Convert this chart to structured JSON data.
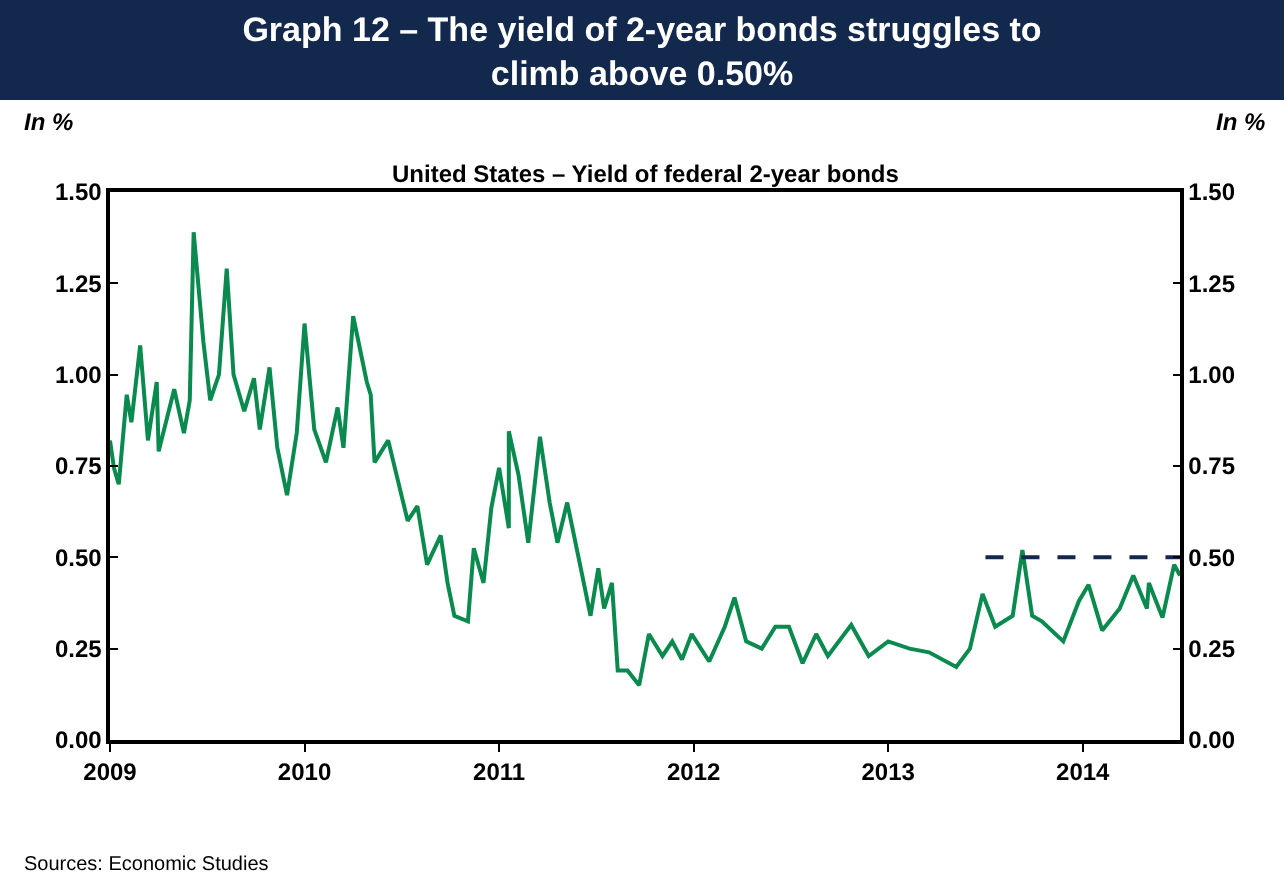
{
  "chart_data": {
    "type": "line",
    "title": "Graph 12 – The yield of 2-year bonds struggles to climb above 0.50%",
    "subtitle": "United States – Yield of federal 2-year bonds",
    "ylabel": "In %",
    "y2label": "In %",
    "annotations": [
      "Sources: Economic Studies"
    ],
    "xlim": [
      2009,
      2014.5
    ],
    "xticks": [
      2009,
      2010,
      2011,
      2012,
      2013,
      2014
    ],
    "ylim": [
      0,
      1.5
    ],
    "yticks": [
      {
        "value": 0,
        "label": "0.00"
      },
      {
        "value": 0.25,
        "label": "0.25"
      },
      {
        "value": 0.5,
        "label": "0.50"
      },
      {
        "value": 0.75,
        "label": "0.75"
      },
      {
        "value": 1,
        "label": "1.00"
      },
      {
        "value": 1.25,
        "label": "1.25"
      },
      {
        "value": 1.5,
        "label": "1.50"
      }
    ],
    "y2lim": [
      0,
      1.5
    ],
    "y2ticks": [
      {
        "value": 0,
        "label": "0.00"
      },
      {
        "value": 0.25,
        "label": "0.25"
      },
      {
        "value": 0.5,
        "label": "0.50"
      },
      {
        "value": 0.75,
        "label": "0.75"
      },
      {
        "value": 1,
        "label": "1.00"
      },
      {
        "value": 1.25,
        "label": "1.25"
      },
      {
        "value": 1.5,
        "label": "1.50"
      }
    ],
    "grid": false,
    "marker": "none",
    "series": [
      {
        "color": "#0a8a4e",
        "line_style": "solid",
        "x": [
          2009.0,
          2009.02,
          2009.045,
          2009.086,
          2009.11,
          2009.155,
          2009.195,
          2009.24,
          2009.25,
          2009.33,
          2009.38,
          2009.41,
          2009.43,
          2009.48,
          2009.515,
          2009.56,
          2009.6,
          2009.635,
          2009.69,
          2009.74,
          2009.77,
          2009.82,
          2009.86,
          2009.91,
          2009.96,
          2010.0,
          2010.05,
          2010.11,
          2010.17,
          2010.2,
          2010.25,
          2010.32,
          2010.34,
          2010.36,
          2010.43,
          2010.48,
          2010.53,
          2010.58,
          2010.63,
          2010.7,
          2010.735,
          2010.77,
          2010.84,
          2010.87,
          2010.92,
          2010.96,
          2011.0,
          2011.05,
          2011.05,
          2011.1,
          2011.15,
          2011.21,
          2011.26,
          2011.3,
          2011.35,
          2011.42,
          2011.47,
          2011.51,
          2011.54,
          2011.58,
          2011.61,
          2011.66,
          2011.72,
          2011.77,
          2011.84,
          2011.89,
          2011.94,
          2011.99,
          2012.08,
          2012.16,
          2012.21,
          2012.27,
          2012.35,
          2012.42,
          2012.49,
          2012.56,
          2012.63,
          2012.69,
          2012.81,
          2012.9,
          2013.0,
          2013.11,
          2013.21,
          2013.35,
          2013.42,
          2013.485,
          2013.55,
          2013.64,
          2013.69,
          2013.74,
          2013.79,
          2013.9,
          2013.98,
          2014.03,
          2014.1,
          2014.19,
          2014.26,
          2014.33,
          2014.34,
          2014.41,
          2014.47,
          2014.5
        ],
        "values": [
          0.82,
          0.745,
          0.7,
          0.945,
          0.87,
          1.08,
          0.82,
          0.98,
          0.79,
          0.96,
          0.84,
          0.93,
          1.39,
          1.09,
          0.93,
          1.0,
          1.29,
          1.0,
          0.9,
          0.99,
          0.85,
          1.02,
          0.8,
          0.67,
          0.84,
          1.14,
          0.85,
          0.76,
          0.91,
          0.8,
          1.16,
          0.98,
          0.945,
          0.76,
          0.82,
          0.71,
          0.6,
          0.64,
          0.48,
          0.56,
          0.43,
          0.34,
          0.325,
          0.525,
          0.43,
          0.635,
          0.745,
          0.58,
          0.845,
          0.725,
          0.54,
          0.83,
          0.65,
          0.54,
          0.65,
          0.47,
          0.34,
          0.47,
          0.36,
          0.43,
          0.19,
          0.19,
          0.15,
          0.29,
          0.23,
          0.27,
          0.22,
          0.29,
          0.215,
          0.31,
          0.39,
          0.27,
          0.25,
          0.31,
          0.31,
          0.21,
          0.29,
          0.23,
          0.315,
          0.23,
          0.27,
          0.25,
          0.24,
          0.2,
          0.25,
          0.4,
          0.31,
          0.34,
          0.52,
          0.34,
          0.325,
          0.27,
          0.38,
          0.425,
          0.3,
          0.36,
          0.45,
          0.36,
          0.43,
          0.335,
          0.48,
          0.45
        ]
      },
      {
        "color": "#14284b",
        "line_style": "dashed",
        "x": [
          2013.5,
          2014.5
        ],
        "values": [
          0.5,
          0.5
        ]
      }
    ]
  }
}
